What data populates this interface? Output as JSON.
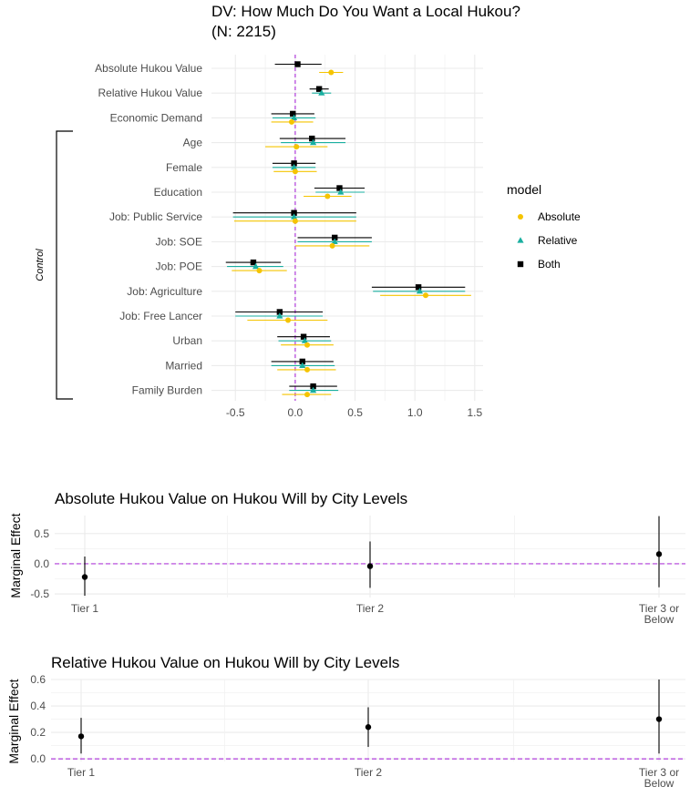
{
  "chart_data": [
    {
      "type": "coefficient-plot",
      "title": "DV: How Much Do You Want a Local Hukou?",
      "subtitle": "(N: 2215)",
      "xlim": [
        -0.7,
        1.57
      ],
      "xticks": [
        -0.5,
        0.0,
        0.5,
        1.0,
        1.5
      ],
      "xtick_labels": [
        "-0.5",
        "0.0",
        "0.5",
        "1.0",
        "1.5"
      ],
      "reference_line": 0,
      "reference_line_color": "#b03cdb",
      "grid": true,
      "legend": {
        "title": "model",
        "placement": "right",
        "entries": [
          {
            "label": "Absolute",
            "color": "#f5c400",
            "shape": "circle"
          },
          {
            "label": "Relative",
            "color": "#1aafa0",
            "shape": "triangle"
          },
          {
            "label": "Both",
            "color": "#000000",
            "shape": "square"
          }
        ]
      },
      "bracket_label": "Control",
      "terms": [
        "Absolute Hukou Value",
        "Relative Hukou Value",
        "Economic Demand",
        "Age",
        "Female",
        "Education",
        "Job: Public Service",
        "Job: SOE",
        "Job: POE",
        "Job: Agriculture",
        "Job: Free Lancer",
        "Urban",
        "Married",
        "Family Burden"
      ],
      "series": [
        {
          "name": "Both",
          "estimates": [
            0.02,
            0.2,
            -0.02,
            0.14,
            -0.01,
            0.37,
            -0.01,
            0.33,
            -0.35,
            1.03,
            -0.13,
            0.07,
            0.06,
            0.15
          ],
          "lower": [
            -0.17,
            0.12,
            -0.2,
            -0.13,
            -0.19,
            0.16,
            -0.52,
            0.02,
            -0.58,
            0.64,
            -0.5,
            -0.15,
            -0.2,
            -0.05
          ],
          "upper": [
            0.22,
            0.28,
            0.16,
            0.42,
            0.17,
            0.58,
            0.51,
            0.64,
            -0.12,
            1.42,
            0.23,
            0.29,
            0.32,
            0.35
          ]
        },
        {
          "name": "Relative",
          "estimates": [
            null,
            0.22,
            -0.01,
            0.15,
            -0.01,
            0.38,
            -0.01,
            0.33,
            -0.33,
            1.04,
            -0.13,
            0.08,
            0.06,
            0.15
          ],
          "lower": [
            null,
            0.14,
            -0.19,
            -0.12,
            -0.19,
            0.17,
            -0.52,
            0.02,
            -0.57,
            0.65,
            -0.5,
            -0.14,
            -0.2,
            -0.05
          ],
          "upper": [
            null,
            0.3,
            0.17,
            0.42,
            0.17,
            0.58,
            0.51,
            0.64,
            -0.1,
            1.42,
            0.23,
            0.3,
            0.33,
            0.36
          ]
        },
        {
          "name": "Absolute",
          "estimates": [
            0.3,
            null,
            -0.03,
            0.01,
            0.0,
            0.27,
            0.0,
            0.31,
            -0.3,
            1.09,
            -0.06,
            0.1,
            0.1,
            0.1
          ],
          "lower": [
            0.2,
            null,
            -0.2,
            -0.25,
            -0.18,
            0.07,
            -0.51,
            0.0,
            -0.53,
            0.71,
            -0.4,
            -0.12,
            -0.15,
            -0.11
          ],
          "upper": [
            0.4,
            null,
            0.15,
            0.27,
            0.18,
            0.47,
            0.51,
            0.62,
            -0.07,
            1.47,
            0.27,
            0.32,
            0.34,
            0.3
          ]
        }
      ]
    },
    {
      "type": "marginal-effect",
      "title": "Absolute Hukou Value on Hukou Will by City Levels",
      "ylabel": "Marginal Effect",
      "categories": [
        "Tier 1",
        "Tier 2",
        "Tier 3 or\nBelow"
      ],
      "category_labels": [
        [
          "Tier 1"
        ],
        [
          "Tier 2"
        ],
        [
          "Tier 3 or",
          "Below"
        ]
      ],
      "values": [
        -0.22,
        -0.04,
        0.16
      ],
      "lower": [
        -0.53,
        -0.4,
        -0.39
      ],
      "upper": [
        0.12,
        0.37,
        0.79
      ],
      "ylim": [
        -0.56,
        0.8
      ],
      "yticks": [
        -0.5,
        0.0,
        0.5
      ],
      "ytick_labels": [
        "-0.5",
        "0.0",
        "0.5"
      ],
      "reference_line": 0,
      "reference_line_color": "#b03cdb",
      "grid": true
    },
    {
      "type": "marginal-effect",
      "title": "Relative Hukou Value on Hukou Will by City Levels",
      "ylabel": "Marginal Effect",
      "categories": [
        "Tier 1",
        "Tier 2",
        "Tier 3 or\nBelow"
      ],
      "category_labels": [
        [
          "Tier 1"
        ],
        [
          "Tier 2"
        ],
        [
          "Tier 3 or",
          "Below"
        ]
      ],
      "values": [
        0.17,
        0.24,
        0.3
      ],
      "lower": [
        0.04,
        0.09,
        0.04
      ],
      "upper": [
        0.31,
        0.39,
        0.6
      ],
      "ylim": [
        -0.02,
        0.6
      ],
      "yticks": [
        0.0,
        0.2,
        0.4,
        0.6
      ],
      "ytick_labels": [
        "0.0",
        "0.2",
        "0.4",
        "0.6"
      ],
      "reference_line": 0,
      "reference_line_color": "#b03cdb",
      "grid": true
    }
  ]
}
